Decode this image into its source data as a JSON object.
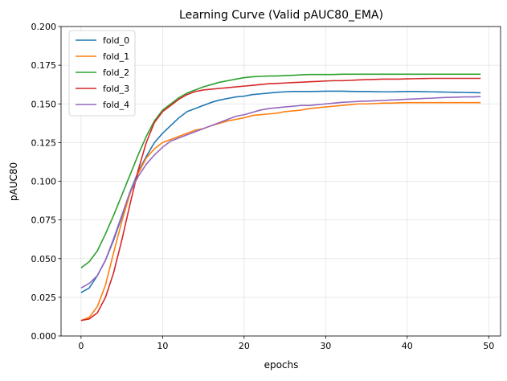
{
  "chart_data": {
    "type": "line",
    "title": "Learning Curve (Valid pAUC80_EMA)",
    "xlabel": "epochs",
    "ylabel": "pAUC80",
    "xlim": [
      -2.45,
      51.45
    ],
    "ylim": [
      0,
      0.2
    ],
    "xticks": [
      0,
      10,
      20,
      30,
      40,
      50
    ],
    "yticks": [
      0,
      0.025,
      0.05,
      0.075,
      0.1,
      0.125,
      0.15,
      0.175,
      0.2
    ],
    "ytick_labels": [
      "0.000",
      "0.025",
      "0.050",
      "0.075",
      "0.100",
      "0.125",
      "0.150",
      "0.175",
      "0.200"
    ],
    "grid": true,
    "legend_position": "top-left",
    "x": [
      0,
      1,
      2,
      3,
      4,
      5,
      6,
      7,
      8,
      9,
      10,
      11,
      12,
      13,
      14,
      15,
      16,
      17,
      18,
      19,
      20,
      21,
      22,
      23,
      24,
      25,
      26,
      27,
      28,
      29,
      30,
      31,
      32,
      33,
      34,
      35,
      36,
      37,
      38,
      39,
      40,
      41,
      42,
      43,
      44,
      45,
      46,
      47,
      48,
      49
    ],
    "series": [
      {
        "name": "fold_0",
        "color": "#1f77b4",
        "values": [
          0.028,
          0.031,
          0.039,
          0.049,
          0.062,
          0.077,
          0.093,
          0.106,
          0.116,
          0.125,
          0.131,
          0.136,
          0.141,
          0.145,
          0.147,
          0.149,
          0.151,
          0.1525,
          0.1535,
          0.1545,
          0.155,
          0.156,
          0.1565,
          0.157,
          0.1575,
          0.1578,
          0.158,
          0.158,
          0.158,
          0.1581,
          0.1582,
          0.1582,
          0.1582,
          0.1581,
          0.158,
          0.158,
          0.1579,
          0.1578,
          0.1578,
          0.1579,
          0.158,
          0.158,
          0.1579,
          0.1578,
          0.1577,
          0.1576,
          0.1575,
          0.1574,
          0.1573,
          0.1572
        ]
      },
      {
        "name": "fold_1",
        "color": "#ff7f0e",
        "values": [
          0.01,
          0.012,
          0.019,
          0.033,
          0.054,
          0.074,
          0.092,
          0.105,
          0.115,
          0.121,
          0.125,
          0.127,
          0.129,
          0.131,
          0.133,
          0.134,
          0.136,
          0.1375,
          0.139,
          0.14,
          0.141,
          0.1425,
          0.143,
          0.1435,
          0.144,
          0.145,
          0.1455,
          0.146,
          0.147,
          0.1475,
          0.148,
          0.1485,
          0.149,
          0.1495,
          0.15,
          0.15,
          0.1502,
          0.1505,
          0.1505,
          0.1507,
          0.1508,
          0.1508,
          0.1508,
          0.1508,
          0.1508,
          0.1508,
          0.1508,
          0.1508,
          0.1508,
          0.1508
        ]
      },
      {
        "name": "fold_2",
        "color": "#2ca02c",
        "values": [
          0.044,
          0.048,
          0.055,
          0.066,
          0.078,
          0.091,
          0.104,
          0.117,
          0.129,
          0.139,
          0.146,
          0.15,
          0.154,
          0.157,
          0.159,
          0.161,
          0.1625,
          0.164,
          0.165,
          0.166,
          0.167,
          0.1675,
          0.1678,
          0.168,
          0.168,
          0.1683,
          0.1685,
          0.1688,
          0.169,
          0.169,
          0.169,
          0.169,
          0.1692,
          0.1692,
          0.1692,
          0.1692,
          0.1692,
          0.1692,
          0.1692,
          0.1692,
          0.1692,
          0.1692,
          0.1692,
          0.1692,
          0.1692,
          0.1692,
          0.1692,
          0.1692,
          0.1692,
          0.1692
        ]
      },
      {
        "name": "fold_3",
        "color": "#d62728",
        "values": [
          0.01,
          0.011,
          0.015,
          0.025,
          0.041,
          0.062,
          0.085,
          0.107,
          0.125,
          0.138,
          0.145,
          0.149,
          0.153,
          0.156,
          0.158,
          0.159,
          0.1595,
          0.16,
          0.1605,
          0.161,
          0.1615,
          0.162,
          0.1625,
          0.163,
          0.1632,
          0.1635,
          0.1638,
          0.164,
          0.1643,
          0.1645,
          0.1648,
          0.165,
          0.165,
          0.1652,
          0.1655,
          0.1657,
          0.1658,
          0.166,
          0.166,
          0.166,
          0.1662,
          0.1663,
          0.1664,
          0.1665,
          0.1665,
          0.1665,
          0.1665,
          0.1665,
          0.1665,
          0.1665
        ]
      },
      {
        "name": "fold_4",
        "color": "#9467bd",
        "values": [
          0.031,
          0.034,
          0.039,
          0.049,
          0.063,
          0.078,
          0.093,
          0.103,
          0.111,
          0.117,
          0.122,
          0.126,
          0.128,
          0.13,
          0.132,
          0.134,
          0.136,
          0.138,
          0.14,
          0.142,
          0.143,
          0.1445,
          0.146,
          0.147,
          0.1475,
          0.148,
          0.1485,
          0.149,
          0.149,
          0.1495,
          0.15,
          0.1505,
          0.151,
          0.1513,
          0.1516,
          0.1518,
          0.152,
          0.1522,
          0.1525,
          0.1527,
          0.153,
          0.1532,
          0.1535,
          0.1537,
          0.154,
          0.1542,
          0.1543,
          0.1545,
          0.1545,
          0.1547
        ]
      }
    ]
  }
}
